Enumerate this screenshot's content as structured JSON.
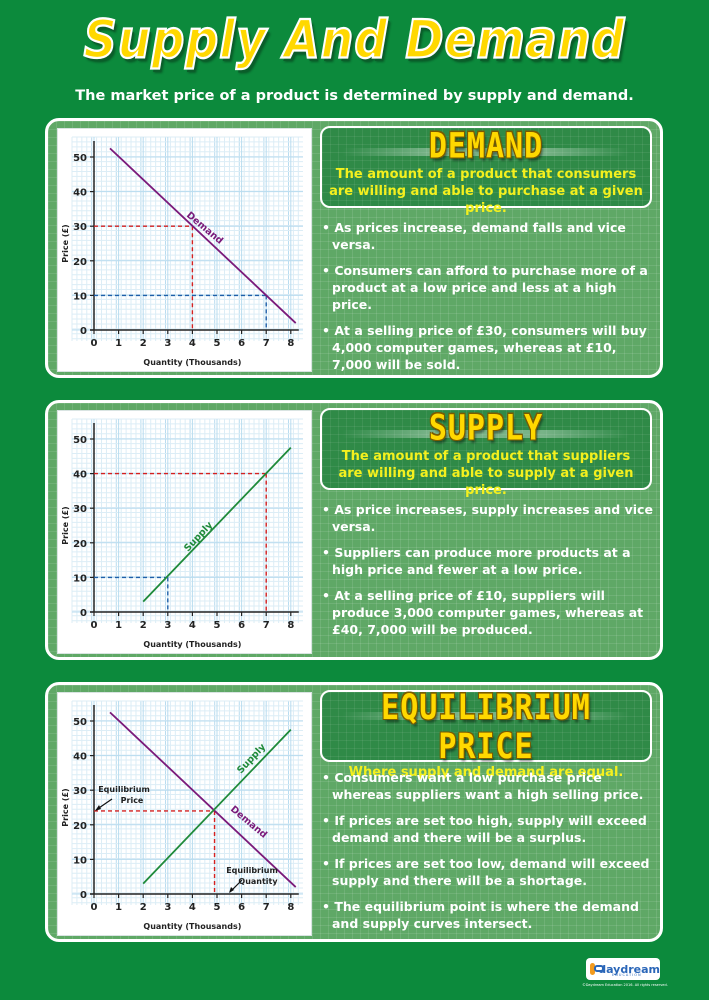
{
  "title": "Supply And Demand",
  "subtitle": "The market price of a product is determined by supply and demand.",
  "panels": [
    {
      "heading": "DEMAND",
      "description": "The amount of a product that consumers are willing and able to purchase at a given price.",
      "points": [
        "As prices increase, demand falls and vice versa.",
        "Consumers can afford to purchase more of a product at a low price and less at a high price.",
        "At a selling price of £30, consumers will buy 4,000 computer games, whereas at £10, 7,000 will be sold."
      ]
    },
    {
      "heading": "SUPPLY",
      "description": "The amount of a product that suppliers are willing and able to supply at a given price.",
      "points": [
        "As price increases, supply increases and vice versa.",
        "Suppliers can produce more products at a high price and fewer at a low price.",
        "At a selling price of £10, suppliers will produce 3,000 computer games, whereas at £40, 7,000 will be produced."
      ]
    },
    {
      "heading": "EQUILIBRIUM PRICE",
      "description": "Where supply and demand are equal.",
      "points": [
        "Consumers want a low purchase price whereas suppliers want a high selling price.",
        "If prices are set too high, supply will exceed demand and there will be a surplus.",
        "If prices are set too low, demand will exceed supply and there will be a shortage.",
        "The equilibrium point is where the demand and supply curves intersect."
      ]
    }
  ],
  "charts_text": {
    "xlabel": "Quantity (Thousands)",
    "ylabel": "Price (£)",
    "demand_label": "Demand",
    "supply_label": "Supply",
    "eq_price_label_1": "Equilibrium",
    "eq_price_label_2": "Price",
    "eq_qty_label_1": "Equilibrium",
    "eq_qty_label_2": "Quantity"
  },
  "chart_data": [
    {
      "type": "line",
      "title": "Demand",
      "xlabel": "Quantity (Thousands)",
      "ylabel": "Price (£)",
      "xlim": [
        0,
        8
      ],
      "ylim": [
        0,
        50
      ],
      "x_ticks": [
        0,
        1,
        2,
        3,
        4,
        5,
        6,
        7,
        8
      ],
      "y_ticks": [
        0,
        10,
        20,
        30,
        40,
        50
      ],
      "grid": true,
      "series": [
        {
          "name": "Demand",
          "color": "#7a1a7a",
          "x": [
            0.65,
            8.2
          ],
          "y": [
            52.5,
            2
          ]
        }
      ],
      "annotations": [
        {
          "type": "dashed-guide",
          "color": "#d42020",
          "x": 4,
          "y": 30
        },
        {
          "type": "dashed-guide",
          "color": "#1f5fa8",
          "x": 7,
          "y": 10
        }
      ]
    },
    {
      "type": "line",
      "title": "Supply",
      "xlabel": "Quantity (Thousands)",
      "ylabel": "Price (£)",
      "xlim": [
        0,
        8
      ],
      "ylim": [
        0,
        50
      ],
      "x_ticks": [
        0,
        1,
        2,
        3,
        4,
        5,
        6,
        7,
        8
      ],
      "y_ticks": [
        0,
        10,
        20,
        30,
        40,
        50
      ],
      "grid": true,
      "series": [
        {
          "name": "Supply",
          "color": "#1f8a3a",
          "x": [
            2,
            8
          ],
          "y": [
            3,
            47.5
          ]
        }
      ],
      "annotations": [
        {
          "type": "dashed-guide",
          "color": "#1f5fa8",
          "x": 3,
          "y": 10
        },
        {
          "type": "dashed-guide",
          "color": "#d42020",
          "x": 7,
          "y": 40
        }
      ]
    },
    {
      "type": "line",
      "title": "Equilibrium Price",
      "xlabel": "Quantity (Thousands)",
      "ylabel": "Price (£)",
      "xlim": [
        0,
        8
      ],
      "ylim": [
        0,
        50
      ],
      "x_ticks": [
        0,
        1,
        2,
        3,
        4,
        5,
        6,
        7,
        8
      ],
      "y_ticks": [
        0,
        10,
        20,
        30,
        40,
        50
      ],
      "grid": true,
      "series": [
        {
          "name": "Demand",
          "color": "#7a1a7a",
          "x": [
            0.65,
            8.2
          ],
          "y": [
            52.5,
            2
          ]
        },
        {
          "name": "Supply",
          "color": "#1f8a3a",
          "x": [
            2,
            8
          ],
          "y": [
            3,
            47.5
          ]
        }
      ],
      "annotations": [
        {
          "type": "dashed-guide",
          "color": "#d42020",
          "x": 4.9,
          "y": 24,
          "label_x": "Equilibrium Quantity",
          "label_y": "Equilibrium Price"
        }
      ]
    }
  ],
  "footer": {
    "logo_name": "daydream",
    "logo_sub": "EDUCATION",
    "copyright": "©Daydream Education 2016. All rights reserved."
  },
  "colors": {
    "background": "#0c8a3c",
    "panel": "#5fa866",
    "title_yellow": "#ffd800",
    "description_yellow": "#f4f01e",
    "demand_line": "#7a1a7a",
    "supply_line": "#1f8a3a",
    "guide_red": "#d42020",
    "guide_blue": "#1f5fa8"
  }
}
